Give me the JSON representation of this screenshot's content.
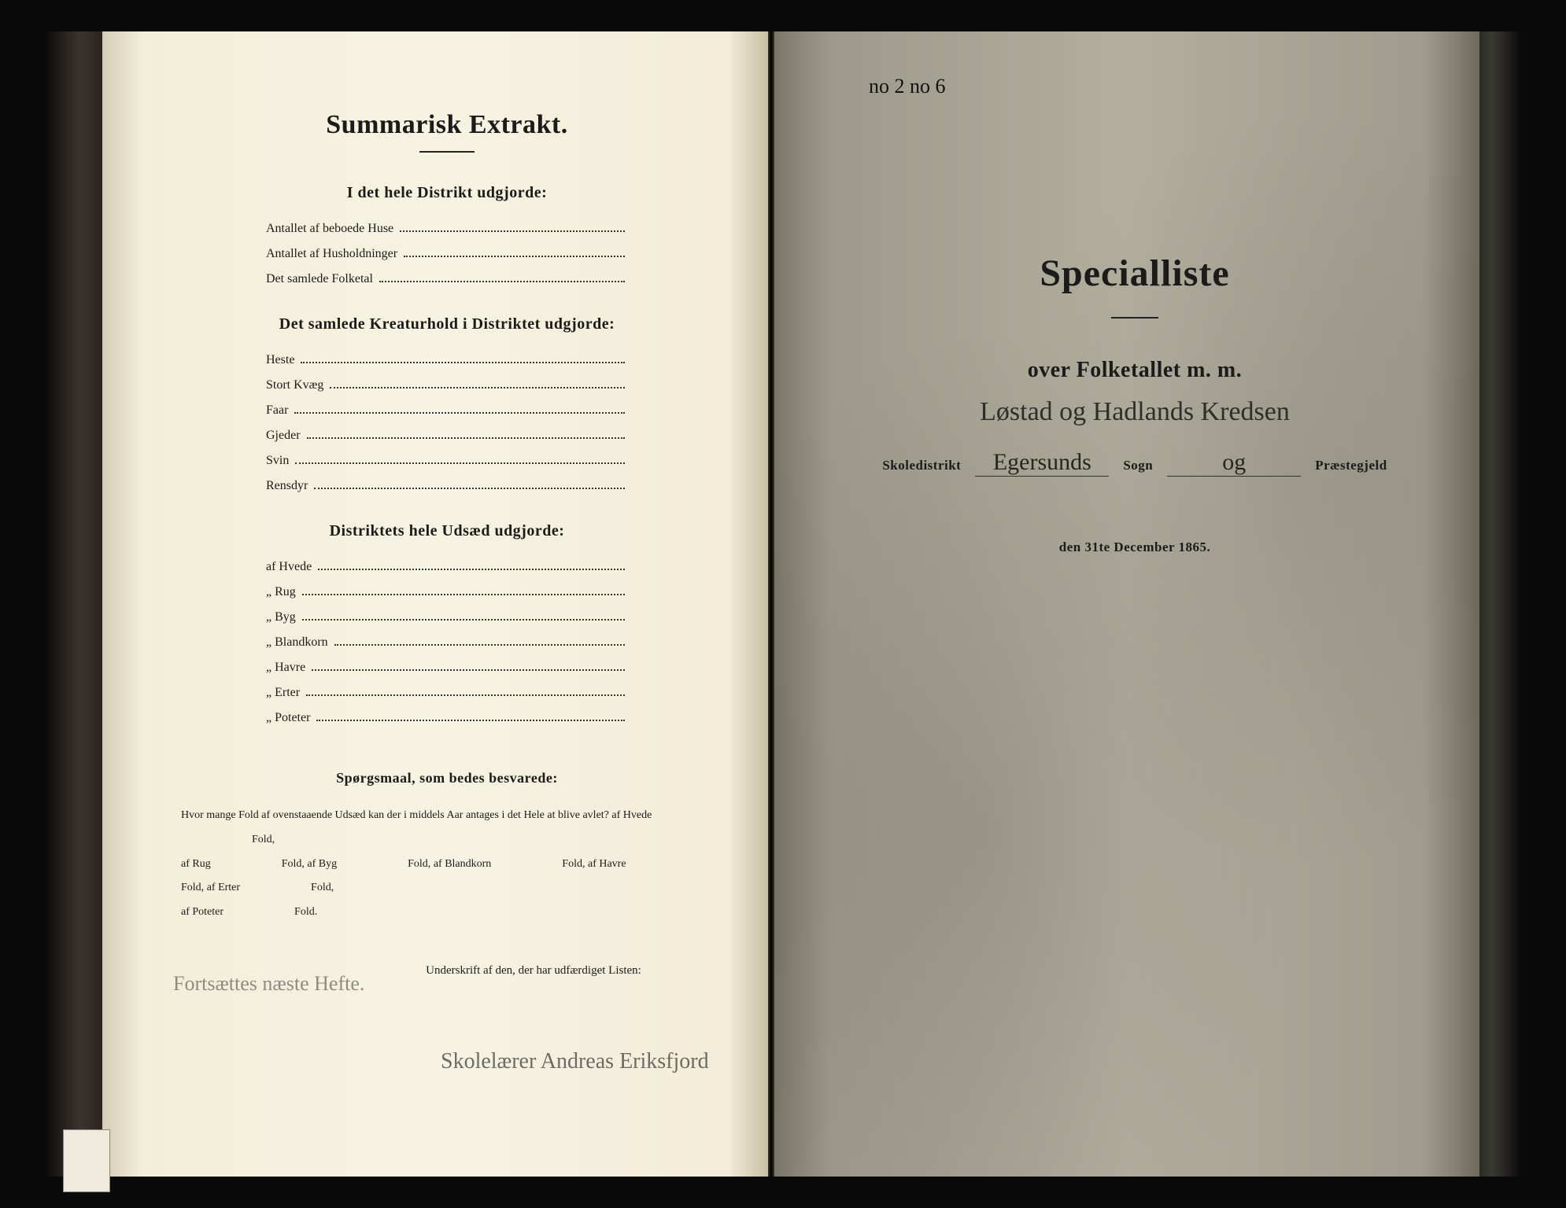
{
  "colors": {
    "page_left_bg": "#f7f3e2",
    "page_right_bg": "#a8a494",
    "ink": "#1b1b1b",
    "pencil": "#4a4a46",
    "frame": "#0a0a0a"
  },
  "typography": {
    "title_pt": 34,
    "section_head_pt": 20,
    "body_pt": 16,
    "questions_body_pt": 14,
    "right_title_pt": 48,
    "right_sub_pt": 28,
    "handwriting_pt": 28
  },
  "left_page": {
    "title": "Summarisk Extrakt.",
    "section1_head": "I det hele Distrikt udgjorde:",
    "section1_rows": [
      "Antallet af beboede Huse",
      "Antallet af Husholdninger",
      "Det samlede Folketal"
    ],
    "section2_head": "Det samlede Kreaturhold i Distriktet udgjorde:",
    "section2_rows": [
      "Heste",
      "Stort Kvæg",
      "Faar",
      "Gjeder",
      "Svin",
      "Rensdyr"
    ],
    "section3_head": "Distriktets hele Udsæd udgjorde:",
    "section3_rows": [
      "af Hvede",
      "„ Rug",
      "„ Byg",
      "„ Blandkorn",
      "„ Havre",
      "„ Erter",
      "„ Poteter"
    ],
    "questions_head": "Spørgsmaal, som bedes besvarede:",
    "questions_line1": "Hvor mange Fold af ovenstaaende Udsæd kan der i middels Aar antages i det Hele at blive avlet?  af Hvede",
    "q_fold": "Fold,",
    "q_fold_end": "Fold.",
    "q_af_rug": "af Rug",
    "q_af_byg": "af Byg",
    "q_af_blandkorn": "af Blandkorn",
    "q_af_havre": "af Havre",
    "q_af_erter": "af Erter",
    "q_af_poteter": "af Poteter",
    "sign_label": "Underskrift af den, der har udfærdiget Listen:",
    "pencil_note": "Fortsættes næste Hefte.",
    "signature": "Skolelærer Andreas Eriksfjord"
  },
  "right_page": {
    "top_mark": "no 2  no 6",
    "title": "Specialliste",
    "subtitle": "over Folketallet m. m.",
    "handwritten_line": "Løstad og Hadlands Kredsen",
    "label_skoledistrikt": "Skoledistrikt",
    "value_skoledistrikt": "Egersunds",
    "label_sogn": "Sogn",
    "value_sogn": "og",
    "label_praestegjeld": "Præstegjeld",
    "date_line": "den 31te December 1865."
  }
}
